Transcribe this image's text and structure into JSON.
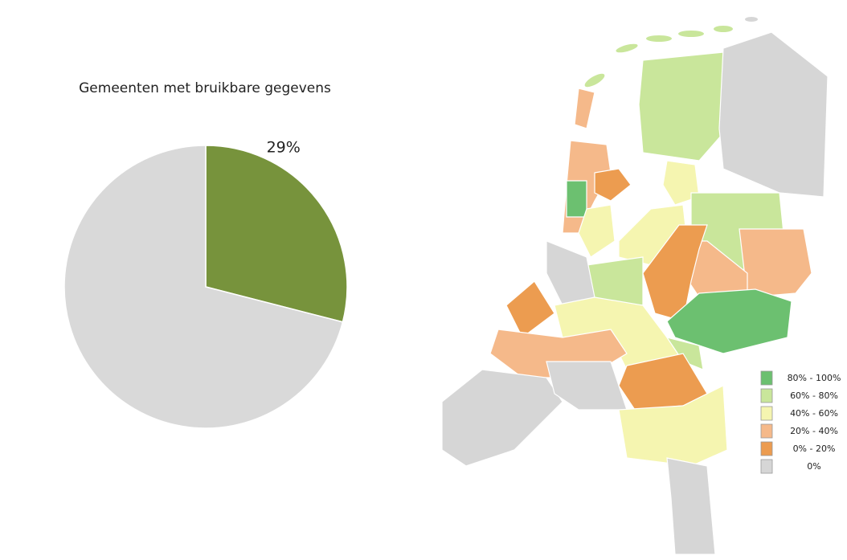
{
  "chart_data": {
    "type": "pie",
    "title": "Gemeenten met bruikbare gegevens",
    "values": [
      29,
      71
    ],
    "value_labels": [
      "29%",
      null
    ],
    "colors": [
      "#77933c",
      "#d9d9d9"
    ]
  },
  "map": {
    "legend": [
      {
        "label": "80% - 100%",
        "color": "#6cc070"
      },
      {
        "label": "60% - 80%",
        "color": "#c9e69b"
      },
      {
        "label": "40% - 60%",
        "color": "#f5f5b0"
      },
      {
        "label": "20% - 40%",
        "color": "#f5b98a"
      },
      {
        "label": "0% - 20%",
        "color": "#ec9c50"
      },
      {
        "label": "0%",
        "color": "#d6d6d6"
      }
    ]
  }
}
